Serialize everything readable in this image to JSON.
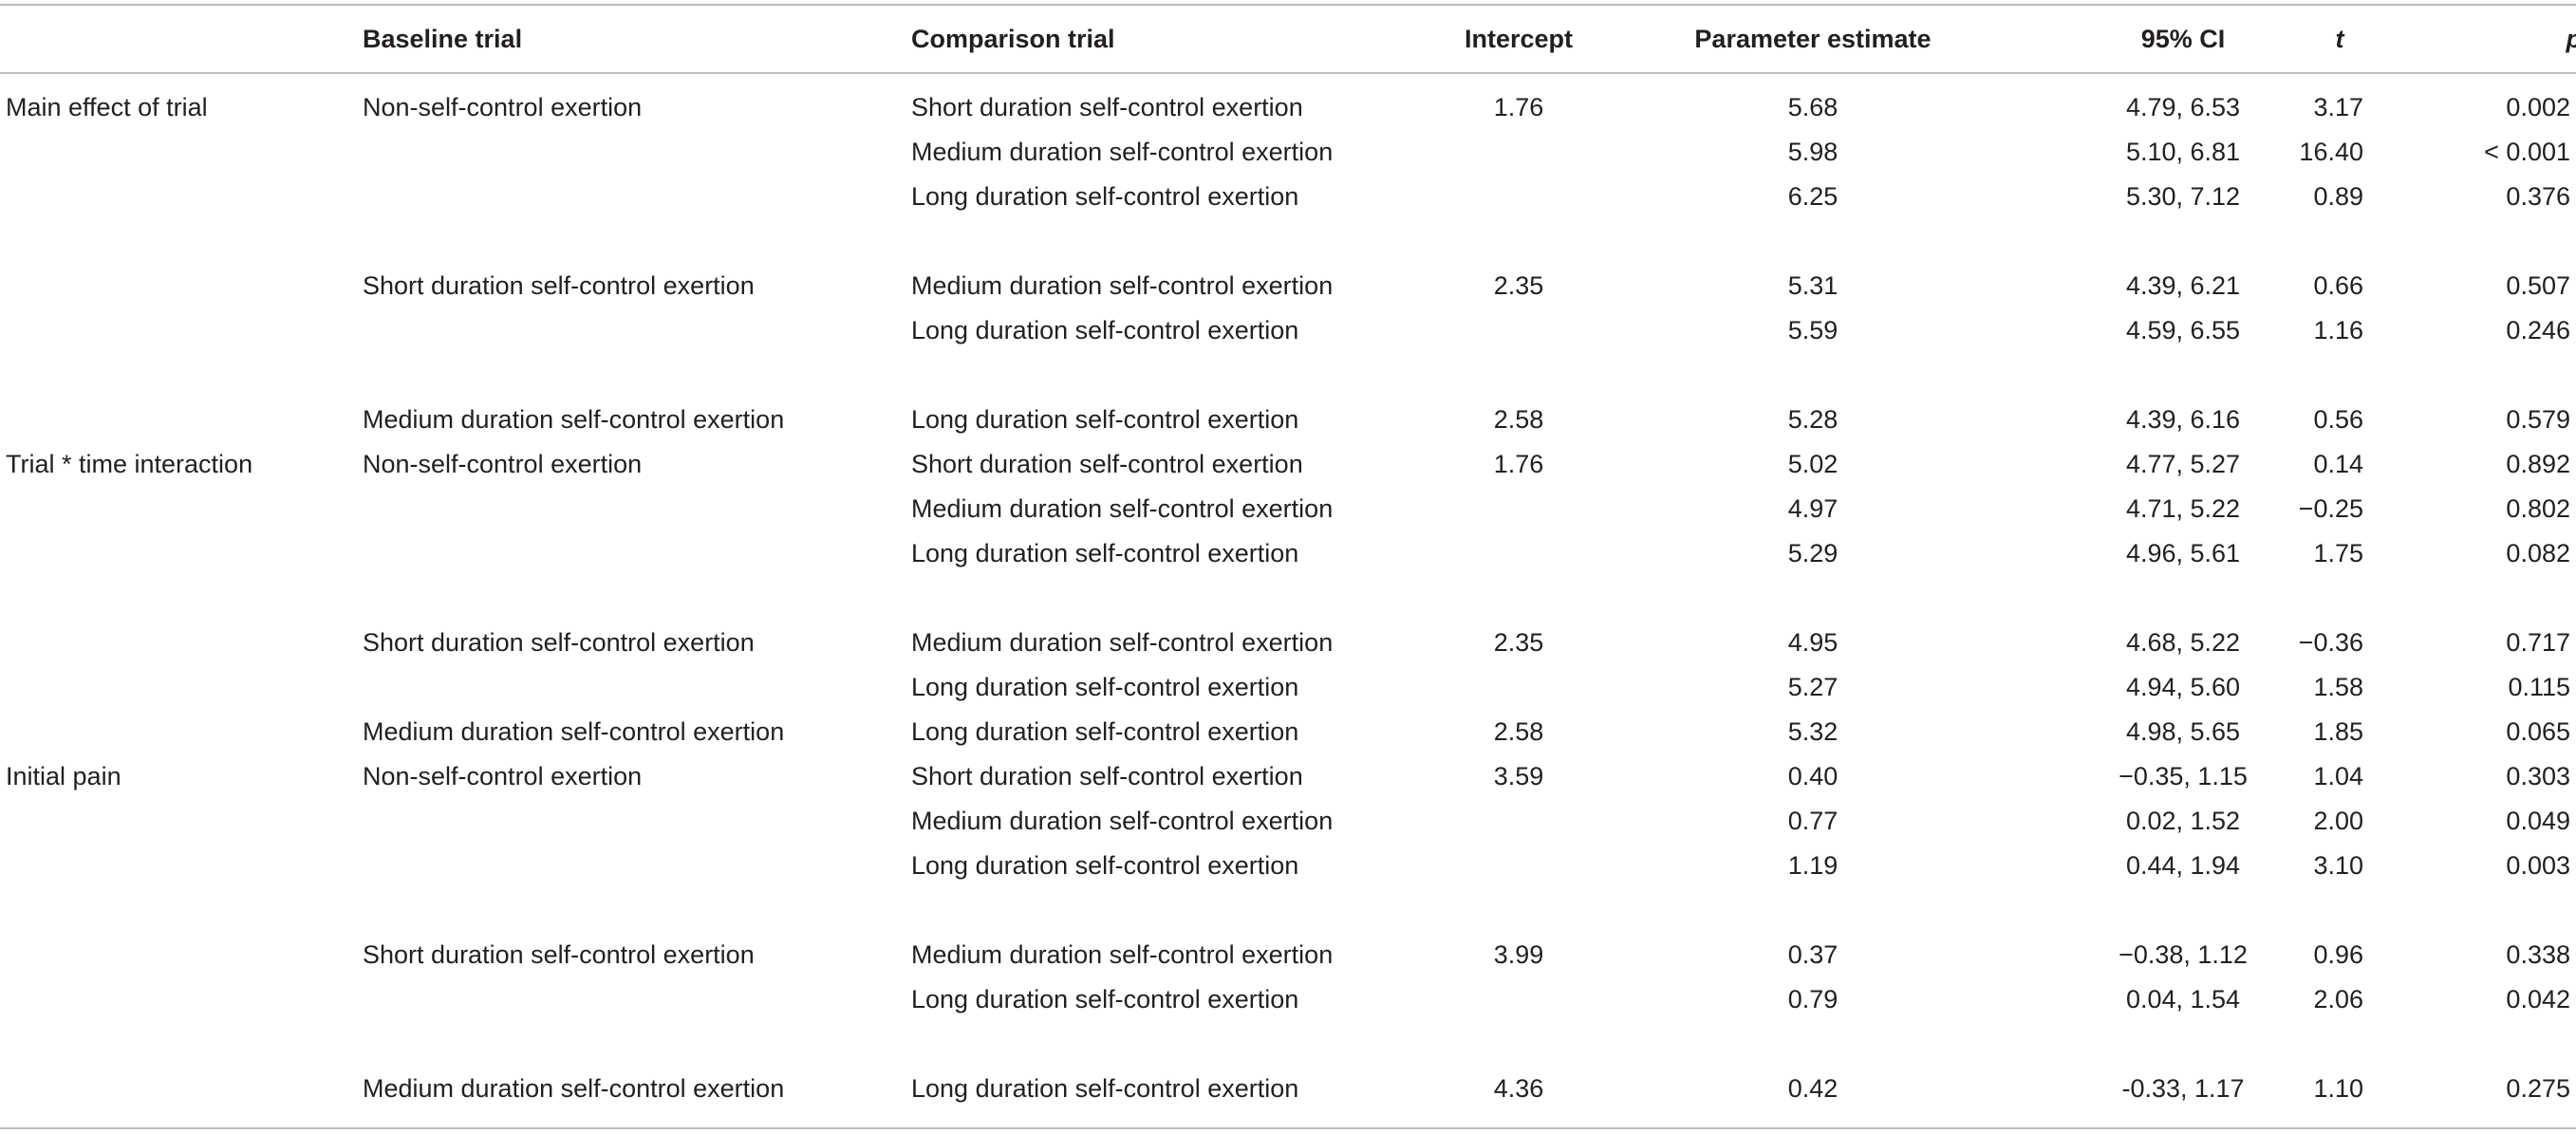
{
  "table": {
    "headers": {
      "section": "",
      "baseline": "Baseline trial",
      "comparison": "Comparison trial",
      "intercept": "Intercept",
      "estimate": "Parameter estimate",
      "ci": "95% CI",
      "t": "t",
      "p": "p"
    },
    "rows": [
      {
        "section": "Main effect of trial",
        "baseline": "Non-self-control exertion",
        "comparison": "Short duration self-control exertion",
        "intercept": "1.76",
        "estimate": "5.68",
        "ci": "4.79, 6.53",
        "t": "3.17",
        "p": "0.002"
      },
      {
        "section": "",
        "baseline": "",
        "comparison": "Medium duration self-control exertion",
        "intercept": "",
        "estimate": "5.98",
        "ci": "5.10, 6.81",
        "t": "16.40",
        "p": "< 0.001"
      },
      {
        "section": "",
        "baseline": "",
        "comparison": "Long duration self-control exertion",
        "intercept": "",
        "estimate": "6.25",
        "ci": "5.30, 7.12",
        "t": "0.89",
        "p": "0.376"
      },
      {
        "section": "",
        "baseline": "Short duration self-control exertion",
        "comparison": "Medium duration self-control exertion",
        "intercept": "2.35",
        "estimate": "5.31",
        "ci": "4.39, 6.21",
        "t": "0.66",
        "p": "0.507"
      },
      {
        "section": "",
        "baseline": "",
        "comparison": "Long duration self-control exertion",
        "intercept": "",
        "estimate": "5.59",
        "ci": "4.59, 6.55",
        "t": "1.16",
        "p": "0.246"
      },
      {
        "section": "",
        "baseline": "Medium duration self-control exertion",
        "comparison": "Long duration self-control exertion",
        "intercept": "2.58",
        "estimate": "5.28",
        "ci": "4.39, 6.16",
        "t": "0.56",
        "p": "0.579"
      },
      {
        "section": "Trial * time interaction",
        "baseline": "Non-self-control exertion",
        "comparison": "Short duration self-control exertion",
        "intercept": "1.76",
        "estimate": "5.02",
        "ci": "4.77, 5.27",
        "t": "0.14",
        "p": "0.892"
      },
      {
        "section": "",
        "baseline": "",
        "comparison": "Medium duration self-control exertion",
        "intercept": "",
        "estimate": "4.97",
        "ci": "4.71, 5.22",
        "t": "−0.25",
        "p": "0.802"
      },
      {
        "section": "",
        "baseline": "",
        "comparison": "Long duration self-control exertion",
        "intercept": "",
        "estimate": "5.29",
        "ci": "4.96, 5.61",
        "t": "1.75",
        "p": "0.082"
      },
      {
        "section": "",
        "baseline": "Short duration self-control exertion",
        "comparison": "Medium duration self-control exertion",
        "intercept": "2.35",
        "estimate": "4.95",
        "ci": "4.68, 5.22",
        "t": "−0.36",
        "p": "0.717"
      },
      {
        "section": "",
        "baseline": "",
        "comparison": "Long duration self-control exertion",
        "intercept": "",
        "estimate": "5.27",
        "ci": "4.94, 5.60",
        "t": "1.58",
        "p": "0.115"
      },
      {
        "section": "",
        "baseline": "Medium duration self-control exertion",
        "comparison": "Long duration self-control exertion",
        "intercept": "2.58",
        "estimate": "5.32",
        "ci": "4.98, 5.65",
        "t": "1.85",
        "p": "0.065"
      },
      {
        "section": "Initial pain",
        "baseline": "Non-self-control exertion",
        "comparison": "Short duration self-control exertion",
        "intercept": "3.59",
        "estimate": "0.40",
        "ci": "−0.35, 1.15",
        "t": "1.04",
        "p": "0.303"
      },
      {
        "section": "",
        "baseline": "",
        "comparison": "Medium duration self-control exertion",
        "intercept": "",
        "estimate": "0.77",
        "ci": "0.02, 1.52",
        "t": "2.00",
        "p": "0.049"
      },
      {
        "section": "",
        "baseline": "",
        "comparison": "Long duration self-control exertion",
        "intercept": "",
        "estimate": "1.19",
        "ci": "0.44, 1.94",
        "t": "3.10",
        "p": "0.003"
      },
      {
        "section": "",
        "baseline": "Short duration self-control exertion",
        "comparison": "Medium duration self-control exertion",
        "intercept": "3.99",
        "estimate": "0.37",
        "ci": "−0.38, 1.12",
        "t": "0.96",
        "p": "0.338"
      },
      {
        "section": "",
        "baseline": "",
        "comparison": "Long duration self-control exertion",
        "intercept": "",
        "estimate": "0.79",
        "ci": "0.04, 1.54",
        "t": "2.06",
        "p": "0.042"
      },
      {
        "section": "",
        "baseline": "Medium duration self-control exertion",
        "comparison": "Long duration self-control exertion",
        "intercept": "4.36",
        "estimate": "0.42",
        "ci": "-0.33, 1.17",
        "t": "1.10",
        "p": "0.275"
      }
    ]
  }
}
